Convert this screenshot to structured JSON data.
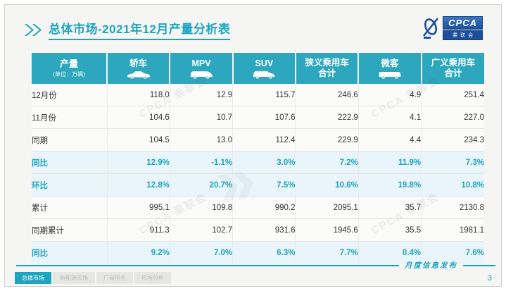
{
  "colors": {
    "accent": "#1CA5BD",
    "table_header_bg": "#2CA7BD",
    "highlight_row_bg": "#E9F4FB",
    "logo_blue": "#1C4F9B"
  },
  "header": {
    "title": "总体市场-2021年12月产量分析表"
  },
  "logo": {
    "brand": "CPCA",
    "sub": "乘联会"
  },
  "watermark": {
    "text": "CPCA 乘联会"
  },
  "table": {
    "unit_label": "产量",
    "unit_note": "(单位：万辆)",
    "columns": [
      {
        "label": "轿车",
        "icon": "sedan-icon"
      },
      {
        "label": "MPV",
        "icon": "mpv-icon"
      },
      {
        "label": "SUV",
        "icon": "suv-icon"
      },
      {
        "label": "狭义乘用车",
        "label2": "合计"
      },
      {
        "label": "微客",
        "icon": "microvan-icon"
      },
      {
        "label": "广义乘用车",
        "label2": "合计"
      }
    ],
    "rows": [
      {
        "label": "12月份",
        "highlight": false,
        "values": [
          "118.0",
          "12.9",
          "115.7",
          "246.6",
          "4.9",
          "251.4"
        ]
      },
      {
        "label": "11月份",
        "highlight": false,
        "values": [
          "104.6",
          "10.7",
          "107.6",
          "222.9",
          "4.1",
          "227.0"
        ]
      },
      {
        "label": "同期",
        "highlight": false,
        "values": [
          "104.5",
          "13.0",
          "112.4",
          "229.9",
          "4.4",
          "234.3"
        ]
      },
      {
        "label": "同比",
        "highlight": true,
        "values": [
          "12.9%",
          "-1.1%",
          "3.0%",
          "7.2%",
          "11.9%",
          "7.3%"
        ]
      },
      {
        "label": "环比",
        "highlight": true,
        "values": [
          "12.8%",
          "20.7%",
          "7.5%",
          "10.6%",
          "19.8%",
          "10.8%"
        ]
      },
      {
        "label": "累计",
        "highlight": false,
        "values": [
          "995.1",
          "109.8",
          "990.2",
          "2095.1",
          "35.7",
          "2130.8"
        ]
      },
      {
        "label": "同期累计",
        "highlight": false,
        "values": [
          "911.3",
          "102.7",
          "931.6",
          "1945.6",
          "35.5",
          "1981.1"
        ]
      },
      {
        "label": "同比",
        "highlight": true,
        "values": [
          "9.2%",
          "7.0%",
          "6.3%",
          "7.7%",
          "0.4%",
          "7.6%"
        ]
      }
    ]
  },
  "footer": {
    "publication": "月度信息发布",
    "page": "3",
    "tabs": [
      {
        "label": "总体市场",
        "active": true
      },
      {
        "label": "新能源市场",
        "active": false
      },
      {
        "label": "厂商排名",
        "active": false
      },
      {
        "label": "市场分析",
        "active": false
      }
    ]
  }
}
